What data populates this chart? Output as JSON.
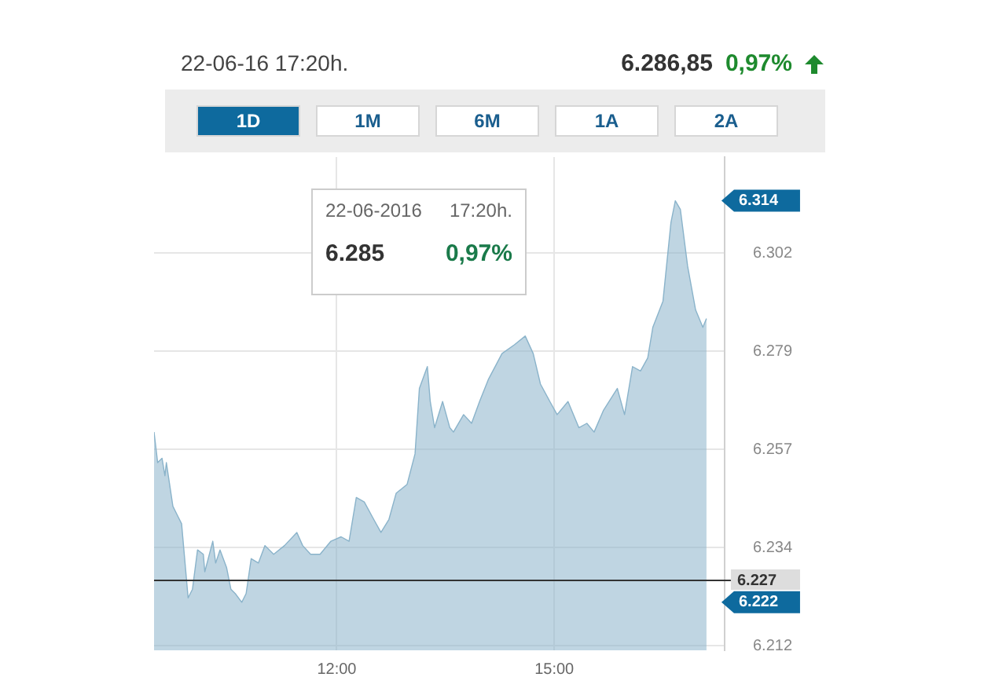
{
  "chart_data": {
    "type": "area",
    "title": "22-06-16 17:20h.",
    "annotations": [
      "6.286,85",
      "0,97%",
      "1D",
      "1M",
      "6M",
      "1A",
      "2A",
      "22-06-2016",
      "17:20h.",
      "6.285",
      "0,97%",
      "6.314",
      "6.222"
    ],
    "x": [
      9.48,
      9.53,
      9.59,
      9.63,
      9.65,
      9.74,
      9.8,
      9.86,
      9.95,
      10.01,
      10.08,
      10.16,
      10.18,
      10.29,
      10.33,
      10.39,
      10.48,
      10.54,
      10.6,
      10.69,
      10.75,
      10.82,
      10.92,
      11.01,
      11.13,
      11.28,
      11.45,
      11.53,
      11.64,
      11.77,
      11.92,
      12.06,
      12.17,
      12.27,
      12.38,
      12.51,
      12.61,
      12.72,
      12.82,
      12.97,
      13.08,
      13.14,
      13.25,
      13.29,
      13.35,
      13.46,
      13.56,
      13.61,
      13.75,
      13.86,
      13.97,
      14.09,
      14.28,
      14.45,
      14.6,
      14.71,
      14.81,
      14.94,
      15.04,
      15.19,
      15.34,
      15.45,
      15.55,
      15.68,
      15.87,
      15.97,
      16.08,
      16.19,
      16.29,
      16.36,
      16.5,
      16.61,
      16.67,
      16.74,
      16.84,
      16.95,
      17.05,
      17.1
    ],
    "series": [
      {
        "color": "#8ab3ca",
        "values": [
          6261,
          6254,
          6255,
          6251,
          6254,
          6244,
          6242,
          6240,
          6223,
          6225,
          6234,
          6233,
          6229,
          6236,
          6231,
          6234,
          6230,
          6225,
          6224,
          6222,
          6224,
          6232,
          6231,
          6235,
          6233,
          6235,
          6238,
          6235,
          6233,
          6233,
          6236,
          6237,
          6236,
          6246,
          6245,
          6241,
          6238,
          6241,
          6247,
          6249,
          6256,
          6271,
          6276,
          6268,
          6262,
          6268,
          6262,
          6261,
          6265,
          6263,
          6268,
          6273,
          6279,
          6281,
          6283,
          6279,
          6272,
          6268,
          6265,
          6268,
          6262,
          6263,
          6261,
          6266,
          6271,
          6265,
          6276,
          6275,
          6278,
          6285,
          6291,
          6309,
          6314,
          6312,
          6299,
          6289,
          6285,
          6287
        ]
      }
    ],
    "xlim": [
      9.48,
      17.35
    ],
    "xticks": [
      {
        "value": 12,
        "label": "12:00"
      },
      {
        "value": 15,
        "label": "15:00"
      }
    ],
    "ylim": [
      6211,
      6324
    ],
    "yticks": [
      {
        "value": 6212,
        "label": "6.212"
      },
      {
        "value": 6234.5,
        "label": "6.234"
      },
      {
        "value": 6257,
        "label": "6.257"
      },
      {
        "value": 6279.5,
        "label": "6.279"
      },
      {
        "value": 6302,
        "label": "6.302"
      }
    ],
    "ref_lines": [
      {
        "axis": "y",
        "value": 6227,
        "label": "6.227",
        "color": "#333333"
      }
    ],
    "grid": true,
    "legend": false
  }
}
